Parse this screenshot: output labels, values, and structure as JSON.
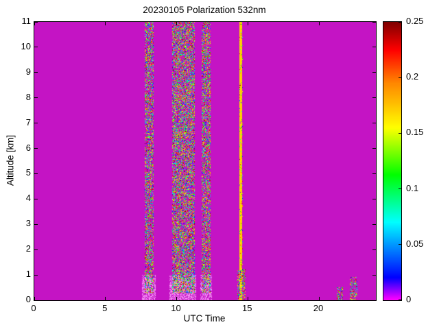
{
  "window": {
    "background": "#ffffff"
  },
  "chart_data": {
    "type": "heatmap",
    "title": "20230105 Polarization 532nm",
    "xlabel": "UTC Time",
    "ylabel": "Altitude [km]",
    "xlim": [
      0,
      24
    ],
    "ylim": [
      0,
      11
    ],
    "x_tick_labels": [
      "0",
      "5",
      "10",
      "15",
      "20"
    ],
    "x_tick_values": [
      0,
      5,
      10,
      15,
      20
    ],
    "y_tick_labels": [
      "0",
      "1",
      "2",
      "3",
      "4",
      "5",
      "6",
      "7",
      "8",
      "9",
      "10",
      "11"
    ],
    "y_tick_values": [
      0,
      1,
      2,
      3,
      4,
      5,
      6,
      7,
      8,
      9,
      10,
      11
    ],
    "grid": false,
    "legend": "none",
    "plot_background_color": "#c414c4",
    "axis_color": "#000000",
    "colorbar": {
      "min": 0,
      "max": 0.25,
      "tick_labels": [
        "0",
        "0.05",
        "0.1",
        "0.15",
        "0.2",
        "0.25"
      ],
      "tick_values": [
        0,
        0.05,
        0.1,
        0.15,
        0.2,
        0.25
      ],
      "position": "right"
    },
    "colormap_stops": [
      [
        0.0,
        "#ff00ff"
      ],
      [
        0.08,
        "#0000ff"
      ],
      [
        0.28,
        "#00ffff"
      ],
      [
        0.45,
        "#00ff00"
      ],
      [
        0.62,
        "#ffff00"
      ],
      [
        0.78,
        "#ff8800"
      ],
      [
        0.9,
        "#ff0000"
      ],
      [
        1.0,
        "#800000"
      ]
    ],
    "haze_palette": [
      "#e86fe8",
      "#f398f3",
      "#db4fdb",
      "#ff9bff"
    ],
    "noise_bands": [
      {
        "kind": "haze",
        "x0": 7.6,
        "x1": 8.45,
        "y0": 0.05,
        "y1": 1.0,
        "density": 0.65
      },
      {
        "kind": "haze",
        "x0": 9.5,
        "x1": 11.3,
        "y0": 0.05,
        "y1": 1.0,
        "density": 0.65
      },
      {
        "kind": "haze",
        "x0": 11.7,
        "x1": 12.4,
        "y0": 0.05,
        "y1": 1.0,
        "density": 0.55
      },
      {
        "kind": "noise",
        "x0": 7.8,
        "x1": 8.3,
        "y0": 0.3,
        "y1": 11,
        "density": 0.5
      },
      {
        "kind": "noise",
        "x0": 9.7,
        "x1": 11.2,
        "y0": 0.3,
        "y1": 11,
        "density": 0.55
      },
      {
        "kind": "noise",
        "x0": 11.8,
        "x1": 12.3,
        "y0": 0.3,
        "y1": 11,
        "density": 0.5
      },
      {
        "kind": "solid",
        "x0": 14.45,
        "x1": 14.58,
        "y0": 0,
        "y1": 11,
        "value": 0.17
      },
      {
        "kind": "noise",
        "x0": 14.45,
        "x1": 14.6,
        "y0": 0,
        "y1": 11,
        "density": 0.12
      },
      {
        "kind": "noise",
        "x0": 14.3,
        "x1": 14.75,
        "y0": 0,
        "y1": 1.2,
        "density": 0.45
      },
      {
        "kind": "noise",
        "x0": 21.3,
        "x1": 21.6,
        "y0": 0,
        "y1": 0.5,
        "density": 0.4
      },
      {
        "kind": "noise",
        "x0": 22.2,
        "x1": 22.65,
        "y0": 0,
        "y1": 0.9,
        "density": 0.4
      }
    ]
  }
}
